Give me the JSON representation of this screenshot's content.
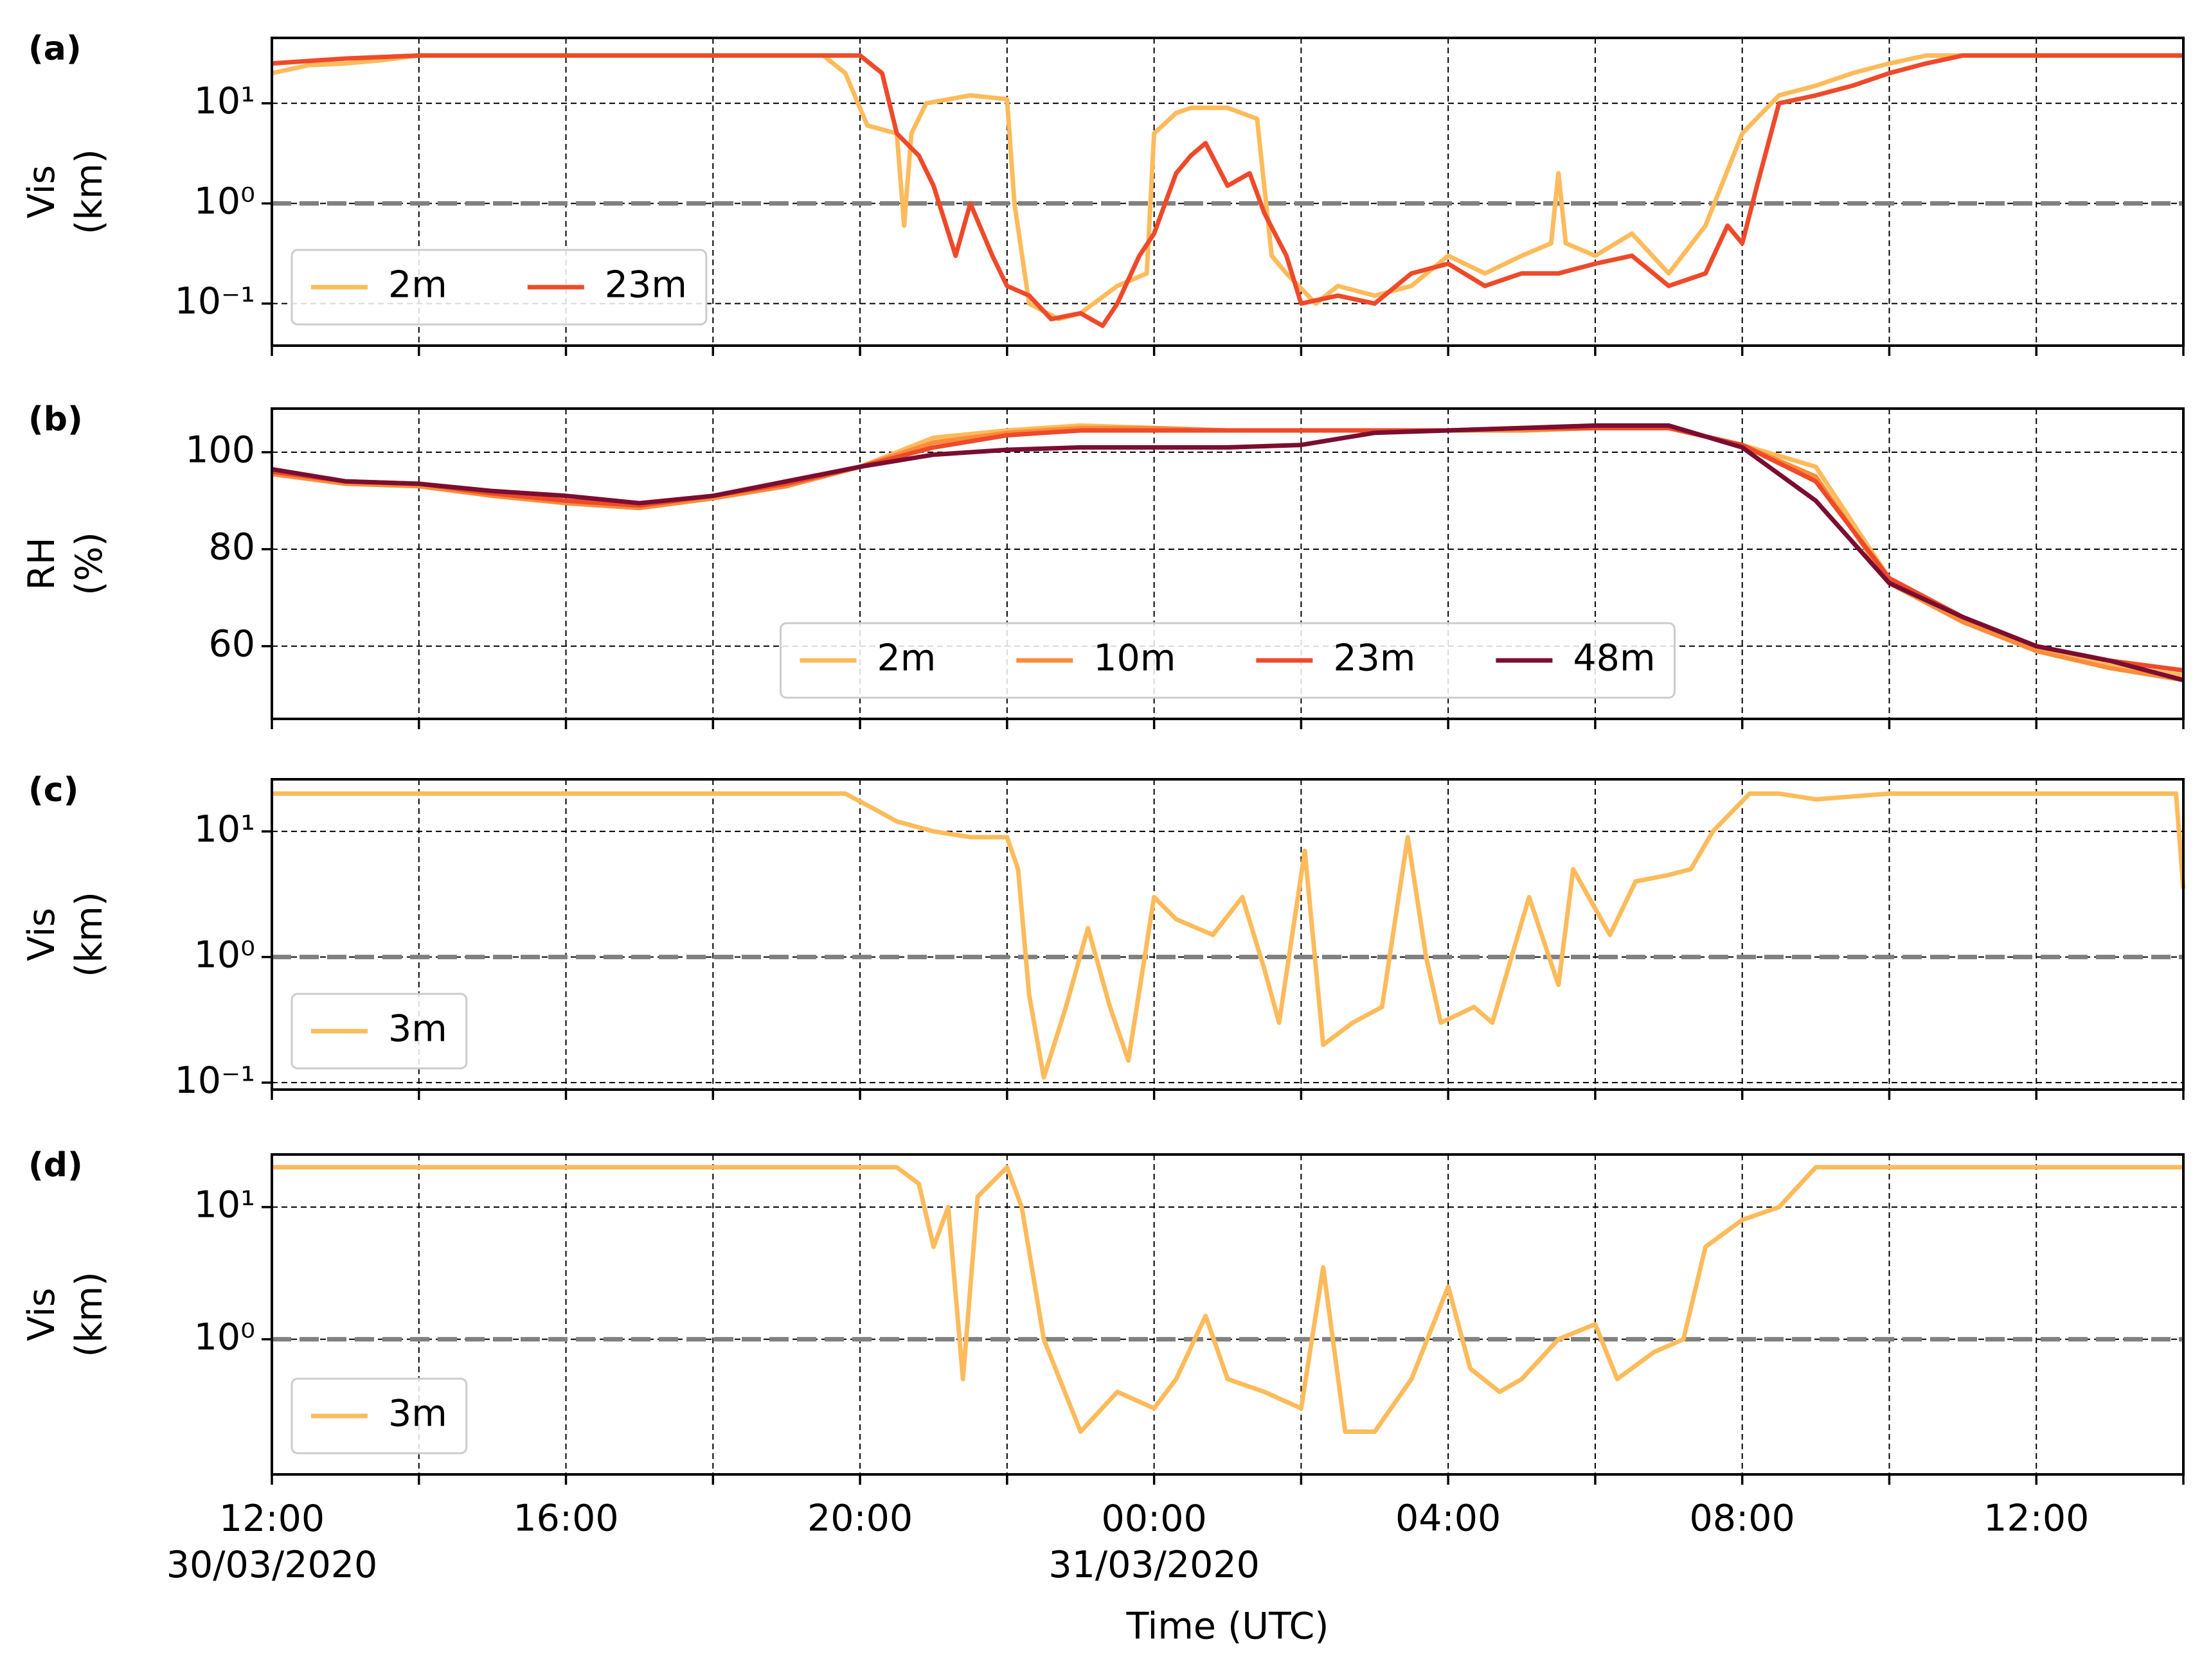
{
  "shared_x": {
    "label": "Time (UTC)",
    "xlim": [
      0,
      26
    ],
    "xticks": [
      {
        "value": 0,
        "label": "12:00\n30/03/2020"
      },
      {
        "value": 4,
        "label": "16:00"
      },
      {
        "value": 8,
        "label": "20:00"
      },
      {
        "value": 12,
        "label": "00:00\n31/03/2020"
      },
      {
        "value": 16,
        "label": "04:00"
      },
      {
        "value": 20,
        "label": "08:00"
      },
      {
        "value": 24,
        "label": "12:00"
      }
    ],
    "minor_xticks": [
      2,
      6,
      10,
      14,
      18,
      22,
      26
    ]
  },
  "chart_data": [
    {
      "type": "line",
      "panel_label": "(a)",
      "ylabel": "Vis\n(km)",
      "log_y": true,
      "ylim": [
        0.038,
        45
      ],
      "yticks": [
        {
          "value": 10,
          "label": "10¹"
        },
        {
          "value": 1,
          "label": "10⁰"
        },
        {
          "value": 0.1,
          "label": "10⁻¹"
        }
      ],
      "hline": 1,
      "grid": true,
      "legend": "lower left",
      "series": [
        {
          "name": "2m",
          "color": "#fdbb5c",
          "x": [
            0,
            0.5,
            1,
            1.5,
            2,
            3,
            4,
            5,
            6,
            7,
            7.5,
            7.8,
            8.1,
            8.5,
            8.6,
            8.7,
            8.9,
            9.5,
            10,
            10.1,
            10.3,
            10.7,
            11,
            11.5,
            11.9,
            12.0,
            12.3,
            12.5,
            13,
            13.4,
            13.6,
            13.8,
            14.2,
            14.5,
            15,
            15.5,
            16,
            16.5,
            17,
            17.4,
            17.5,
            17.6,
            18,
            18.5,
            19,
            19.5,
            20,
            20.5,
            21,
            21.5,
            22,
            22.5,
            23,
            24,
            25,
            26
          ],
          "values": [
            20,
            24,
            25,
            27,
            30,
            30,
            30,
            30,
            30,
            30,
            30,
            20,
            6,
            5,
            0.6,
            5,
            10,
            12,
            11,
            1,
            0.1,
            0.07,
            0.08,
            0.15,
            0.2,
            5,
            8,
            9,
            9,
            7,
            0.3,
            0.2,
            0.1,
            0.15,
            0.12,
            0.15,
            0.3,
            0.2,
            0.3,
            0.4,
            2,
            0.4,
            0.3,
            0.5,
            0.2,
            0.6,
            5,
            12,
            15,
            20,
            25,
            30,
            30,
            30,
            30,
            30
          ]
        },
        {
          "name": "23m",
          "color": "#ee4a2a",
          "x": [
            0,
            1,
            2,
            3,
            4,
            5,
            6,
            7,
            7.5,
            8,
            8.3,
            8.5,
            8.8,
            9,
            9.3,
            9.5,
            9.8,
            10,
            10.3,
            10.6,
            11,
            11.3,
            11.5,
            11.8,
            12,
            12.3,
            12.5,
            12.7,
            13,
            13.3,
            13.5,
            13.8,
            14,
            14.5,
            15,
            15.5,
            16,
            16.5,
            17,
            17.5,
            18,
            18.5,
            19,
            19.5,
            19.8,
            20,
            20.2,
            20.5,
            21,
            21.5,
            22,
            22.5,
            23,
            24,
            25,
            26
          ],
          "values": [
            25,
            28,
            30,
            30,
            30,
            30,
            30,
            30,
            30,
            30,
            20,
            5,
            3,
            1.5,
            0.3,
            1,
            0.3,
            0.15,
            0.12,
            0.07,
            0.08,
            0.06,
            0.1,
            0.3,
            0.5,
            2,
            3,
            4,
            1.5,
            2,
            0.8,
            0.3,
            0.1,
            0.12,
            0.1,
            0.2,
            0.25,
            0.15,
            0.2,
            0.2,
            0.25,
            0.3,
            0.15,
            0.2,
            0.6,
            0.4,
            1.5,
            10,
            12,
            15,
            20,
            25,
            30,
            30,
            30,
            30
          ]
        }
      ]
    },
    {
      "type": "line",
      "panel_label": "(b)",
      "ylabel": "RH\n(%)",
      "log_y": false,
      "ylim": [
        45,
        109
      ],
      "yticks": [
        100,
        80,
        60
      ],
      "grid": true,
      "legend": "lower center",
      "series": [
        {
          "name": "2m",
          "color": "#fdbb5c",
          "x": [
            0,
            1,
            2,
            3,
            4,
            5,
            6,
            7,
            8,
            9,
            10,
            11,
            12,
            13,
            14,
            15,
            16,
            17,
            18,
            19,
            20,
            21,
            22,
            23,
            24,
            25,
            26
          ],
          "values": [
            96,
            94,
            93.5,
            91.5,
            90,
            89,
            91,
            93.5,
            97,
            103,
            104.5,
            105.5,
            105,
            104.5,
            104.5,
            104.5,
            104.5,
            104.5,
            105,
            105,
            101.5,
            97,
            74,
            66,
            60,
            56,
            54
          ]
        },
        {
          "name": "10m",
          "color": "#f98d3a",
          "x": [
            0,
            1,
            2,
            3,
            4,
            5,
            6,
            7,
            8,
            9,
            10,
            11,
            12,
            13,
            14,
            15,
            16,
            17,
            18,
            19,
            20,
            21,
            22,
            23,
            24,
            25,
            26
          ],
          "values": [
            95.5,
            93.5,
            93,
            91,
            89.5,
            88.5,
            90.5,
            93,
            97,
            102,
            104,
            105,
            105,
            104.5,
            104.5,
            104.5,
            104.5,
            104.5,
            105,
            105,
            101.5,
            95,
            73,
            65,
            59,
            55.5,
            53
          ]
        },
        {
          "name": "23m",
          "color": "#ee4a2a",
          "x": [
            0,
            1,
            2,
            3,
            4,
            5,
            6,
            7,
            8,
            9,
            10,
            11,
            12,
            13,
            14,
            15,
            16,
            17,
            18,
            19,
            20,
            21,
            22,
            23,
            24,
            25,
            26
          ],
          "values": [
            96,
            94,
            93.5,
            91.5,
            90,
            89,
            91,
            93.5,
            97,
            101,
            103.5,
            104.5,
            104.5,
            104.5,
            104.5,
            104.5,
            104.5,
            105,
            105,
            105,
            101.5,
            94,
            74,
            66,
            60,
            57,
            55
          ]
        },
        {
          "name": "48m",
          "color": "#7b0d30",
          "x": [
            0,
            1,
            2,
            3,
            4,
            5,
            6,
            7,
            8,
            9,
            10,
            11,
            12,
            13,
            14,
            15,
            16,
            17,
            18,
            19,
            20,
            21,
            22,
            23,
            24,
            25,
            26
          ],
          "values": [
            96.5,
            94,
            93.5,
            92,
            91,
            89.5,
            91,
            94,
            97,
            99.5,
            100.5,
            101,
            101,
            101,
            101.5,
            104,
            104.5,
            105,
            105.5,
            105.5,
            101,
            90,
            73,
            66,
            60,
            57,
            53
          ]
        }
      ]
    },
    {
      "type": "line",
      "panel_label": "(c)",
      "ylabel": "Vis\n(km)",
      "log_y": true,
      "ylim": [
        0.088,
        26
      ],
      "yticks": [
        {
          "value": 10,
          "label": "10¹"
        },
        {
          "value": 1,
          "label": "10⁰"
        },
        {
          "value": 0.1,
          "label": "10⁻¹"
        }
      ],
      "hline": 1,
      "grid": true,
      "legend": "lower left",
      "series": [
        {
          "name": "3m",
          "color": "#fdbb5c",
          "x": [
            0,
            1,
            2,
            3,
            4,
            5,
            6,
            7,
            7.8,
            8.2,
            8.5,
            9,
            9.5,
            10,
            10.15,
            10.3,
            10.5,
            10.8,
            11.1,
            11.4,
            11.65,
            12,
            12.3,
            12.8,
            13.2,
            13.5,
            13.7,
            14.05,
            14.3,
            14.7,
            15.1,
            15.45,
            15.7,
            15.9,
            16.35,
            16.6,
            17.1,
            17.5,
            17.7,
            18.2,
            18.55,
            19,
            19.3,
            19.6,
            20.1,
            20.5,
            21,
            22,
            23,
            24,
            25,
            25.9,
            26
          ],
          "values": [
            20,
            20,
            20,
            20,
            20,
            20,
            20,
            20,
            20,
            15,
            12,
            10,
            9,
            9,
            5,
            0.5,
            0.11,
            0.4,
            1.7,
            0.4,
            0.15,
            3,
            2,
            1.5,
            3,
            0.8,
            0.3,
            7,
            0.2,
            0.3,
            0.4,
            9,
            1,
            0.3,
            0.4,
            0.3,
            3,
            0.6,
            5,
            1.5,
            4,
            4.5,
            5,
            10,
            20,
            20,
            18,
            20,
            20,
            20,
            20,
            20,
            3.5
          ]
        }
      ]
    },
    {
      "type": "line",
      "panel_label": "(d)",
      "ylabel": "Vis\n(km)",
      "log_y": true,
      "ylim": [
        0.095,
        25
      ],
      "yticks": [
        {
          "value": 10,
          "label": "10¹"
        },
        {
          "value": 1,
          "label": "10⁰"
        }
      ],
      "hline": 1,
      "grid": true,
      "legend": "lower left",
      "series": [
        {
          "name": "3m",
          "color": "#fdbb5c",
          "x": [
            0,
            2,
            4,
            6,
            8,
            8.5,
            8.8,
            9.0,
            9.2,
            9.4,
            9.6,
            10,
            10.2,
            10.5,
            11,
            11.5,
            12,
            12.3,
            12.7,
            13,
            13.5,
            14,
            14.3,
            14.6,
            15,
            15.5,
            16,
            16.3,
            16.7,
            17,
            17.5,
            18,
            18.3,
            18.8,
            19.2,
            19.5,
            20,
            20.5,
            21,
            21.5,
            22,
            23,
            24,
            25,
            26
          ],
          "values": [
            20,
            20,
            20,
            20,
            20,
            20,
            15,
            5,
            10,
            0.5,
            12,
            20,
            10,
            1,
            0.2,
            0.4,
            0.3,
            0.5,
            1.5,
            0.5,
            0.4,
            0.3,
            3.5,
            0.2,
            0.2,
            0.5,
            2.5,
            0.6,
            0.4,
            0.5,
            1,
            1.3,
            0.5,
            0.8,
            1,
            5,
            8,
            10,
            20,
            20,
            20,
            20,
            20,
            20,
            20
          ]
        }
      ]
    }
  ]
}
